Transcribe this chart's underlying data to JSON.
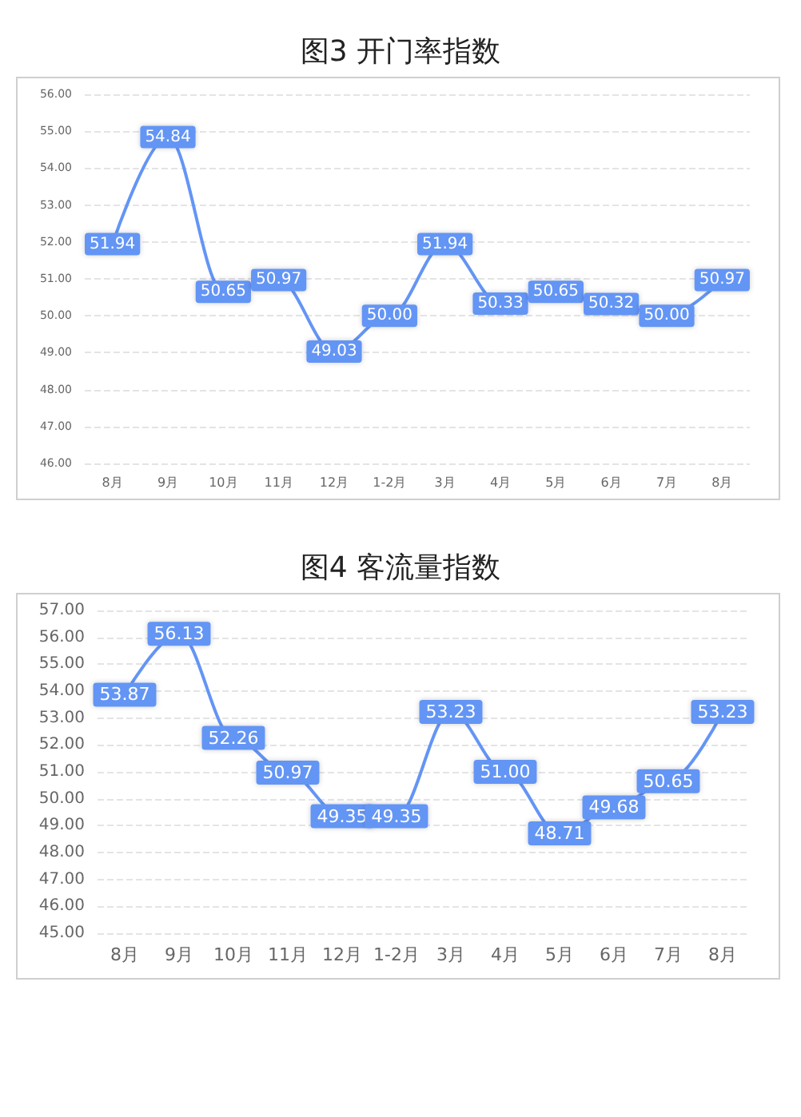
{
  "chart_data": [
    {
      "type": "line",
      "title": "图3 开门率指数",
      "categories": [
        "8月",
        "9月",
        "10月",
        "11月",
        "12月",
        "1-2月",
        "3月",
        "4月",
        "5月",
        "6月",
        "7月",
        "8月"
      ],
      "series": [
        {
          "color": "#6495f5",
          "marker": "square",
          "values": [
            51.94,
            54.84,
            50.65,
            50.97,
            49.03,
            50.0,
            51.94,
            50.33,
            50.65,
            50.32,
            50.0,
            50.97
          ],
          "value_labels": [
            "51.94",
            "54.84",
            "50.65",
            "50.97",
            "49.03",
            "50.00",
            "51.94",
            "50.33",
            "50.65",
            "50.32",
            "50.00",
            "50.97"
          ]
        }
      ],
      "ylim": [
        46,
        56
      ],
      "yticks": [
        {
          "value": 46,
          "label": "46.00"
        },
        {
          "value": 47,
          "label": "47.00"
        },
        {
          "value": 48,
          "label": "48.00"
        },
        {
          "value": 49,
          "label": "49.00"
        },
        {
          "value": 50,
          "label": "50.00"
        },
        {
          "value": 51,
          "label": "51.00"
        },
        {
          "value": 52,
          "label": "52.00"
        },
        {
          "value": 53,
          "label": "53.00"
        },
        {
          "value": 54,
          "label": "54.00"
        },
        {
          "value": 55,
          "label": "55.00"
        },
        {
          "value": 56,
          "label": "56.00"
        }
      ],
      "grid": "y"
    },
    {
      "type": "line",
      "title": "图4 客流量指数",
      "categories": [
        "8月",
        "9月",
        "10月",
        "11月",
        "12月",
        "1-2月",
        "3月",
        "4月",
        "5月",
        "6月",
        "7月",
        "8月"
      ],
      "series": [
        {
          "color": "#6495f5",
          "marker": "square",
          "values": [
            53.87,
            56.13,
            52.26,
            50.97,
            49.35,
            49.35,
            53.23,
            51.0,
            48.71,
            49.68,
            50.65,
            53.23
          ],
          "value_labels": [
            "53.87",
            "56.13",
            "52.26",
            "50.97",
            "49.35",
            "49.35",
            "53.23",
            "51.00",
            "48.71",
            "49.68",
            "50.65",
            "53.23"
          ]
        }
      ],
      "ylim": [
        45,
        57
      ],
      "yticks": [
        {
          "value": 45,
          "label": "45.00"
        },
        {
          "value": 46,
          "label": "46.00"
        },
        {
          "value": 47,
          "label": "47.00"
        },
        {
          "value": 48,
          "label": "48.00"
        },
        {
          "value": 49,
          "label": "49.00"
        },
        {
          "value": 50,
          "label": "50.00"
        },
        {
          "value": 51,
          "label": "51.00"
        },
        {
          "value": 52,
          "label": "52.00"
        },
        {
          "value": 53,
          "label": "53.00"
        },
        {
          "value": 54,
          "label": "54.00"
        },
        {
          "value": 55,
          "label": "55.00"
        },
        {
          "value": 56,
          "label": "56.00"
        },
        {
          "value": 57,
          "label": "57.00"
        }
      ],
      "grid": "y"
    }
  ]
}
